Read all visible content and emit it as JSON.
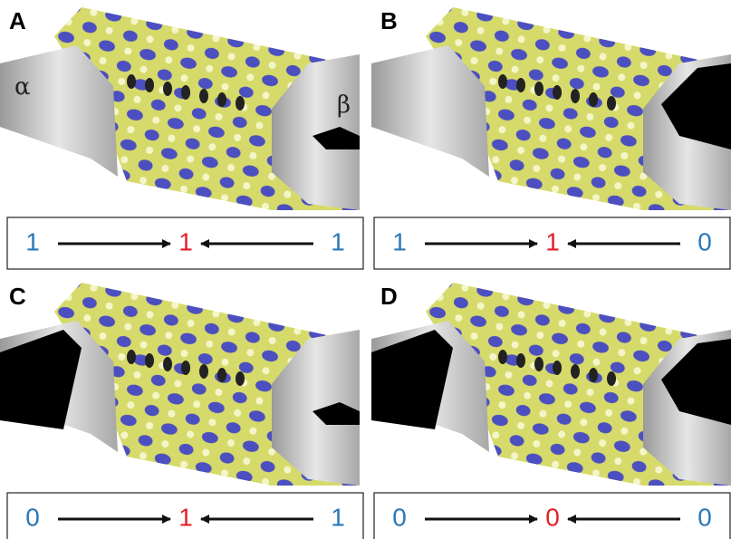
{
  "panels": [
    {
      "label": "A",
      "left": "1",
      "center": "1",
      "right": "1",
      "annotations": [
        "α",
        "β"
      ]
    },
    {
      "label": "B",
      "left": "1",
      "center": "1",
      "right": "0"
    },
    {
      "label": "C",
      "left": "0",
      "center": "1",
      "right": "1"
    },
    {
      "label": "D",
      "left": "0",
      "center": "0",
      "right": "0"
    }
  ]
}
